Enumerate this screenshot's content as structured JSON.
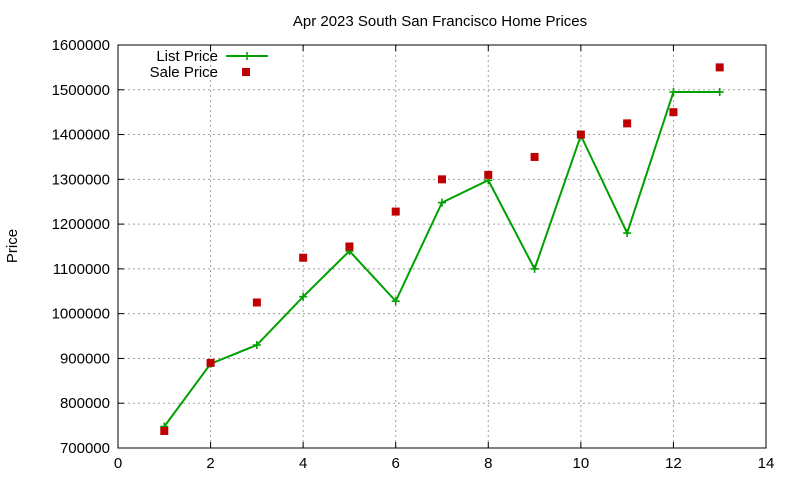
{
  "chart_data": {
    "type": "line",
    "title": "Apr 2023 South San Francisco Home Prices",
    "xlabel": "",
    "ylabel": "Price",
    "xlim": [
      0,
      14
    ],
    "ylim": [
      700000,
      1600000
    ],
    "x_ticks": [
      0,
      2,
      4,
      6,
      8,
      10,
      12,
      14
    ],
    "y_ticks": [
      700000,
      800000,
      900000,
      1000000,
      1100000,
      1200000,
      1300000,
      1400000,
      1500000,
      1600000
    ],
    "grid": true,
    "legend_position": "top-left",
    "series": [
      {
        "name": "List Price",
        "style": "line-with-plus-markers",
        "color": "#00a000",
        "x": [
          1,
          2,
          3,
          4,
          5,
          6,
          7,
          8,
          9,
          10,
          11,
          12,
          13
        ],
        "values": [
          748000,
          888000,
          930000,
          1038000,
          1140000,
          1028000,
          1248000,
          1298000,
          1100000,
          1398000,
          1180000,
          1495000,
          1495000
        ]
      },
      {
        "name": "Sale Price",
        "style": "square-points",
        "color": "#c00000",
        "x": [
          1,
          2,
          3,
          4,
          5,
          6,
          7,
          8,
          9,
          10,
          11,
          12,
          13
        ],
        "values": [
          738000,
          890000,
          1025000,
          1125000,
          1150000,
          1228000,
          1300000,
          1310000,
          1350000,
          1400000,
          1425000,
          1450000,
          1550000
        ]
      }
    ]
  }
}
